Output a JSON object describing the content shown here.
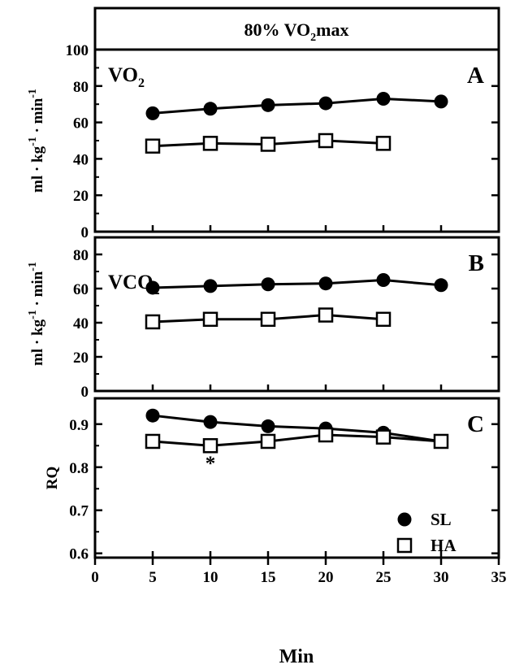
{
  "header": {
    "title_pre": "80% VO",
    "title_sub": "2",
    "title_post": "max"
  },
  "x_axis": {
    "label": "Min",
    "ticks": [
      0,
      5,
      10,
      15,
      20,
      25,
      30,
      35
    ],
    "range": [
      0,
      35
    ]
  },
  "legend": {
    "position": "bottom-right",
    "items": [
      {
        "label": "SL",
        "marker": "filled-circle"
      },
      {
        "label": "HA",
        "marker": "open-square"
      }
    ]
  },
  "colors": {
    "SL": "#000000",
    "HA": "#ffffff",
    "axis": "#000000"
  },
  "chart_data": [
    {
      "type": "line",
      "panel": "A",
      "series_label": "VO",
      "series_label_sub": "2",
      "ylabel": "ml · kg-1 · min-1",
      "ylabel_parts": {
        "a": "ml · kg",
        "b": "-1",
        "c": " · min",
        "d": "-1"
      },
      "ylim": [
        0,
        100
      ],
      "yticks": [
        0,
        20,
        40,
        60,
        80,
        100
      ],
      "series": [
        {
          "name": "SL",
          "x": [
            5,
            10,
            15,
            20,
            25,
            30
          ],
          "values": [
            65,
            67.5,
            69.5,
            70.5,
            73,
            71.5
          ]
        },
        {
          "name": "HA",
          "x": [
            5,
            10,
            15,
            20,
            25
          ],
          "values": [
            47,
            48.5,
            48,
            50,
            48.5
          ]
        }
      ]
    },
    {
      "type": "line",
      "panel": "B",
      "series_label": "VCO",
      "series_label_sub": "2",
      "ylabel": "ml · kg-1 · min-1",
      "ylabel_parts": {
        "a": "ml · kg",
        "b": "-1",
        "c": " · min",
        "d": "-1"
      },
      "ylim": [
        0,
        90
      ],
      "yticks": [
        0,
        20,
        40,
        60,
        80
      ],
      "series": [
        {
          "name": "SL",
          "x": [
            5,
            10,
            15,
            20,
            25,
            30
          ],
          "values": [
            60.5,
            61.5,
            62.5,
            63,
            65,
            62
          ]
        },
        {
          "name": "HA",
          "x": [
            5,
            10,
            15,
            20,
            25
          ],
          "values": [
            40.5,
            42,
            42,
            44.5,
            42
          ]
        }
      ]
    },
    {
      "type": "line",
      "panel": "C",
      "series_label": "",
      "ylabel": "RQ",
      "ylim": [
        0.59,
        0.96
      ],
      "yticks": [
        0.6,
        0.7,
        0.8,
        0.9
      ],
      "annotation": {
        "text": "*",
        "x": 10,
        "y": 0.82
      },
      "series": [
        {
          "name": "SL",
          "x": [
            5,
            10,
            15,
            20,
            25,
            30
          ],
          "values": [
            0.92,
            0.905,
            0.895,
            0.89,
            0.88,
            0.86
          ]
        },
        {
          "name": "HA",
          "x": [
            5,
            10,
            15,
            20,
            25,
            30
          ],
          "values": [
            0.86,
            0.85,
            0.86,
            0.875,
            0.87,
            0.86
          ]
        }
      ]
    }
  ]
}
